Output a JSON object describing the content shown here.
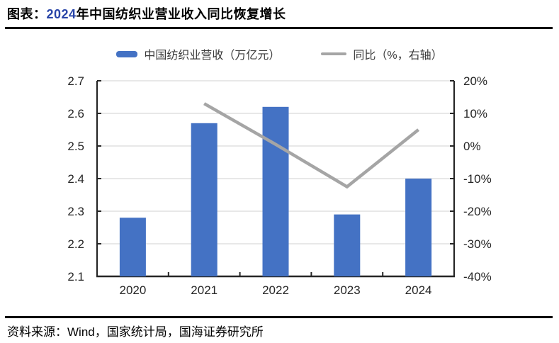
{
  "header": {
    "title_prefix": "图表：",
    "title_year": "2024",
    "title_rest": "年中国纺织业营业收入同比恢复增长"
  },
  "legend": {
    "items": [
      {
        "label": "中国纺织业营收（万亿元）"
      },
      {
        "label": "同比（%，右轴）"
      }
    ]
  },
  "chart_data": {
    "type": "bar",
    "subtype": "bar+line combo, dual axis",
    "categories": [
      "2020",
      "2021",
      "2022",
      "2023",
      "2024"
    ],
    "series": [
      {
        "name": "中国纺织业营收（万亿元）",
        "type": "bar",
        "axis": "left",
        "color": "#4472C4",
        "values": [
          2.28,
          2.57,
          2.62,
          2.29,
          2.4
        ]
      },
      {
        "name": "同比（%，右轴）",
        "type": "line",
        "axis": "right",
        "color": "#A5A5A5",
        "values": [
          null,
          13,
          0.5,
          -12.5,
          5
        ]
      }
    ],
    "left_axis": {
      "min": 2.1,
      "max": 2.7,
      "step": 0.1,
      "ticks": [
        "2.1",
        "2.2",
        "2.3",
        "2.4",
        "2.5",
        "2.6",
        "2.7"
      ]
    },
    "right_axis": {
      "min": -40,
      "max": 20,
      "step": 10,
      "ticks": [
        "-40%",
        "-30%",
        "-20%",
        "-10%",
        "0%",
        "10%",
        "20%"
      ]
    },
    "grid": true,
    "legend_position": "top"
  },
  "footer": {
    "source": "资料来源：Wind，国家统计局，国海证券研究所"
  },
  "colors": {
    "bar": "#4472C4",
    "line": "#A5A5A5",
    "grid": "#D9D9D9",
    "axis": "#262626",
    "title_year": "#2945A8"
  }
}
